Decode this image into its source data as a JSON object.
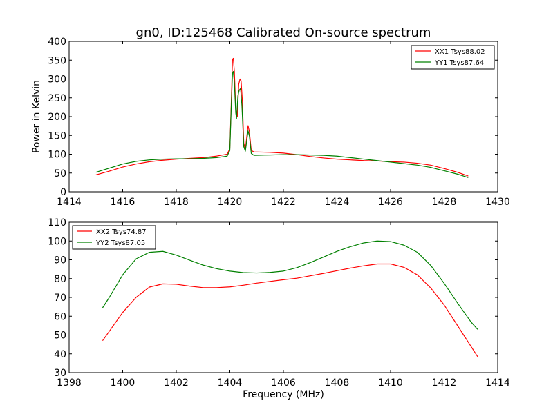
{
  "chart_data": [
    {
      "type": "line",
      "title": "gn0, ID:125468 Calibrated On-source spectrum",
      "xlabel": "",
      "ylabel": "Power in Kelvin",
      "xlim": [
        1414,
        1430
      ],
      "ylim": [
        0,
        400
      ],
      "xticks": [
        1414,
        1416,
        1418,
        1420,
        1422,
        1424,
        1426,
        1428,
        1430
      ],
      "yticks": [
        0,
        50,
        100,
        150,
        200,
        250,
        300,
        350,
        400
      ],
      "grid": false,
      "legend_position": "top-right",
      "series": [
        {
          "name": "XX1 Tsys88.02",
          "color": "#ff0000",
          "points": [
            [
              1415.0,
              45
            ],
            [
              1415.5,
              55
            ],
            [
              1416.0,
              66
            ],
            [
              1416.5,
              74
            ],
            [
              1417.0,
              80
            ],
            [
              1417.5,
              84
            ],
            [
              1418.0,
              87
            ],
            [
              1418.5,
              89
            ],
            [
              1419.0,
              91
            ],
            [
              1419.5,
              95
            ],
            [
              1419.9,
              100
            ],
            [
              1420.0,
              115
            ],
            [
              1420.05,
              230
            ],
            [
              1420.1,
              352
            ],
            [
              1420.13,
              355
            ],
            [
              1420.17,
              320
            ],
            [
              1420.22,
              220
            ],
            [
              1420.28,
              200
            ],
            [
              1420.33,
              285
            ],
            [
              1420.38,
              300
            ],
            [
              1420.42,
              295
            ],
            [
              1420.47,
              240
            ],
            [
              1420.52,
              130
            ],
            [
              1420.58,
              112
            ],
            [
              1420.63,
              145
            ],
            [
              1420.68,
              176
            ],
            [
              1420.73,
              160
            ],
            [
              1420.8,
              110
            ],
            [
              1420.9,
              106
            ],
            [
              1421.5,
              105
            ],
            [
              1422.0,
              103
            ],
            [
              1422.5,
              99
            ],
            [
              1423.0,
              94
            ],
            [
              1423.5,
              90
            ],
            [
              1424.0,
              87
            ],
            [
              1424.5,
              85
            ],
            [
              1425.0,
              83
            ],
            [
              1425.5,
              82
            ],
            [
              1426.0,
              80
            ],
            [
              1426.5,
              79
            ],
            [
              1427.0,
              76
            ],
            [
              1427.5,
              71
            ],
            [
              1428.0,
              62
            ],
            [
              1428.5,
              52
            ],
            [
              1428.9,
              42
            ]
          ]
        },
        {
          "name": "YY1 Tsys87.64",
          "color": "#008000",
          "points": [
            [
              1415.0,
              52
            ],
            [
              1415.5,
              63
            ],
            [
              1416.0,
              74
            ],
            [
              1416.5,
              81
            ],
            [
              1417.0,
              85
            ],
            [
              1417.5,
              87
            ],
            [
              1418.0,
              88
            ],
            [
              1418.5,
              88
            ],
            [
              1419.0,
              89
            ],
            [
              1419.5,
              91
            ],
            [
              1419.9,
              95
            ],
            [
              1420.0,
              110
            ],
            [
              1420.05,
              220
            ],
            [
              1420.1,
              315
            ],
            [
              1420.13,
              320
            ],
            [
              1420.17,
              290
            ],
            [
              1420.22,
              210
            ],
            [
              1420.25,
              195
            ],
            [
              1420.3,
              255
            ],
            [
              1420.35,
              270
            ],
            [
              1420.4,
              275
            ],
            [
              1420.45,
              230
            ],
            [
              1420.52,
              120
            ],
            [
              1420.58,
              108
            ],
            [
              1420.63,
              135
            ],
            [
              1420.68,
              162
            ],
            [
              1420.73,
              148
            ],
            [
              1420.8,
              102
            ],
            [
              1420.9,
              97
            ],
            [
              1421.5,
              98
            ],
            [
              1422.0,
              99
            ],
            [
              1422.5,
              99
            ],
            [
              1423.0,
              98
            ],
            [
              1423.5,
              97
            ],
            [
              1424.0,
              95
            ],
            [
              1424.5,
              91
            ],
            [
              1425.0,
              87
            ],
            [
              1425.5,
              83
            ],
            [
              1426.0,
              79
            ],
            [
              1426.5,
              75
            ],
            [
              1427.0,
              71
            ],
            [
              1427.5,
              65
            ],
            [
              1428.0,
              56
            ],
            [
              1428.5,
              47
            ],
            [
              1428.9,
              38
            ]
          ]
        }
      ]
    },
    {
      "type": "line",
      "title": "",
      "xlabel": "Frequency (MHz)",
      "ylabel": "",
      "xlim": [
        1398,
        1414
      ],
      "ylim": [
        30,
        110
      ],
      "xticks": [
        1398,
        1400,
        1402,
        1404,
        1406,
        1408,
        1410,
        1412,
        1414
      ],
      "yticks": [
        30,
        40,
        50,
        60,
        70,
        80,
        90,
        100,
        110
      ],
      "grid": false,
      "legend_position": "top-left",
      "series": [
        {
          "name": "XX2 Tsys74.87",
          "color": "#ff0000",
          "points": [
            [
              1399.25,
              47
            ],
            [
              1399.5,
              52
            ],
            [
              1400.0,
              62
            ],
            [
              1400.5,
              70
            ],
            [
              1401.0,
              75.5
            ],
            [
              1401.5,
              77.2
            ],
            [
              1402.0,
              77
            ],
            [
              1402.5,
              76
            ],
            [
              1403.0,
              75.2
            ],
            [
              1403.5,
              75.2
            ],
            [
              1404.0,
              75.6
            ],
            [
              1404.5,
              76.5
            ],
            [
              1405.0,
              77.6
            ],
            [
              1405.5,
              78.5
            ],
            [
              1406.0,
              79.4
            ],
            [
              1406.5,
              80.2
            ],
            [
              1407.0,
              81.5
            ],
            [
              1407.5,
              82.8
            ],
            [
              1408.0,
              84.2
            ],
            [
              1408.5,
              85.6
            ],
            [
              1409.0,
              86.8
            ],
            [
              1409.5,
              87.8
            ],
            [
              1410.0,
              87.8
            ],
            [
              1410.5,
              86
            ],
            [
              1411.0,
              82
            ],
            [
              1411.5,
              75
            ],
            [
              1412.0,
              66
            ],
            [
              1412.5,
              55
            ],
            [
              1413.0,
              44
            ],
            [
              1413.25,
              38.5
            ]
          ]
        },
        {
          "name": "YY2 Tsys87.05",
          "color": "#008000",
          "points": [
            [
              1399.25,
              64.5
            ],
            [
              1399.5,
              70
            ],
            [
              1400.0,
              82
            ],
            [
              1400.5,
              90.5
            ],
            [
              1401.0,
              94
            ],
            [
              1401.5,
              94.5
            ],
            [
              1402.0,
              92.5
            ],
            [
              1402.5,
              89.8
            ],
            [
              1403.0,
              87.2
            ],
            [
              1403.5,
              85.3
            ],
            [
              1404.0,
              84
            ],
            [
              1404.5,
              83.2
            ],
            [
              1405.0,
              83
            ],
            [
              1405.5,
              83.3
            ],
            [
              1406.0,
              84
            ],
            [
              1406.5,
              85.8
            ],
            [
              1407.0,
              88.5
            ],
            [
              1407.5,
              91.5
            ],
            [
              1408.0,
              94.5
            ],
            [
              1408.5,
              97
            ],
            [
              1409.0,
              99
            ],
            [
              1409.5,
              100
            ],
            [
              1410.0,
              99.7
            ],
            [
              1410.5,
              97.8
            ],
            [
              1411.0,
              94
            ],
            [
              1411.5,
              87
            ],
            [
              1412.0,
              77.5
            ],
            [
              1412.5,
              67
            ],
            [
              1413.0,
              57
            ],
            [
              1413.25,
              53
            ]
          ]
        }
      ]
    }
  ]
}
